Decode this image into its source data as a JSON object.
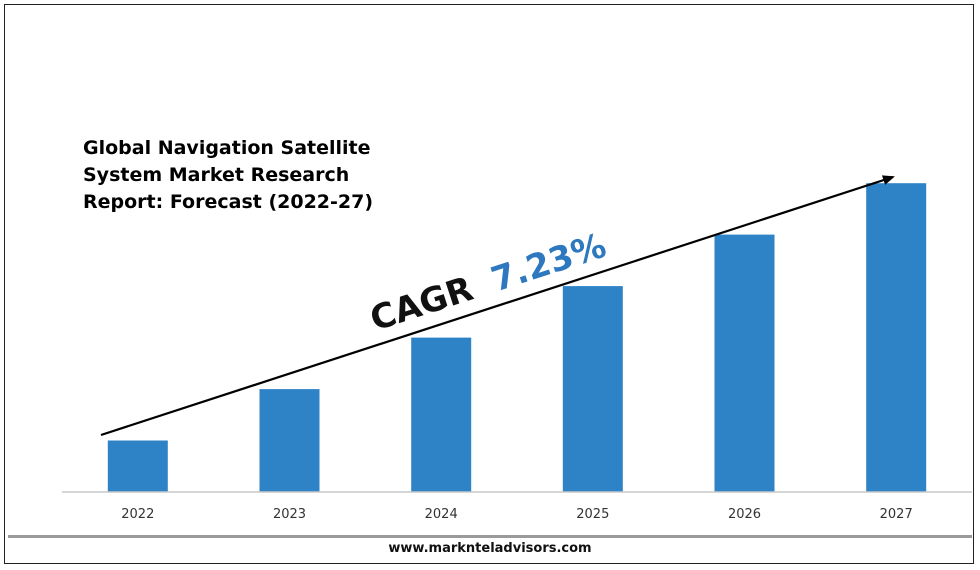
{
  "chart_data": {
    "type": "bar",
    "title_lines": [
      "Global Navigation Satellite",
      "System Market Research",
      "Report: Forecast (2022-27)"
    ],
    "categories": [
      "2022",
      "2023",
      "2024",
      "2025",
      "2026",
      "2027"
    ],
    "values": [
      1.0,
      2.0,
      3.0,
      4.0,
      5.0,
      6.0
    ],
    "ylim": [
      0,
      6.8
    ],
    "bar_color": "#2e83c6",
    "annotation": {
      "prefix": "CAGR",
      "value": "7.23%",
      "prefix_color": "#111111",
      "value_color": "#2e78bf"
    },
    "grid": false,
    "legend": "none",
    "source": "www.marknteladvisors.com"
  }
}
